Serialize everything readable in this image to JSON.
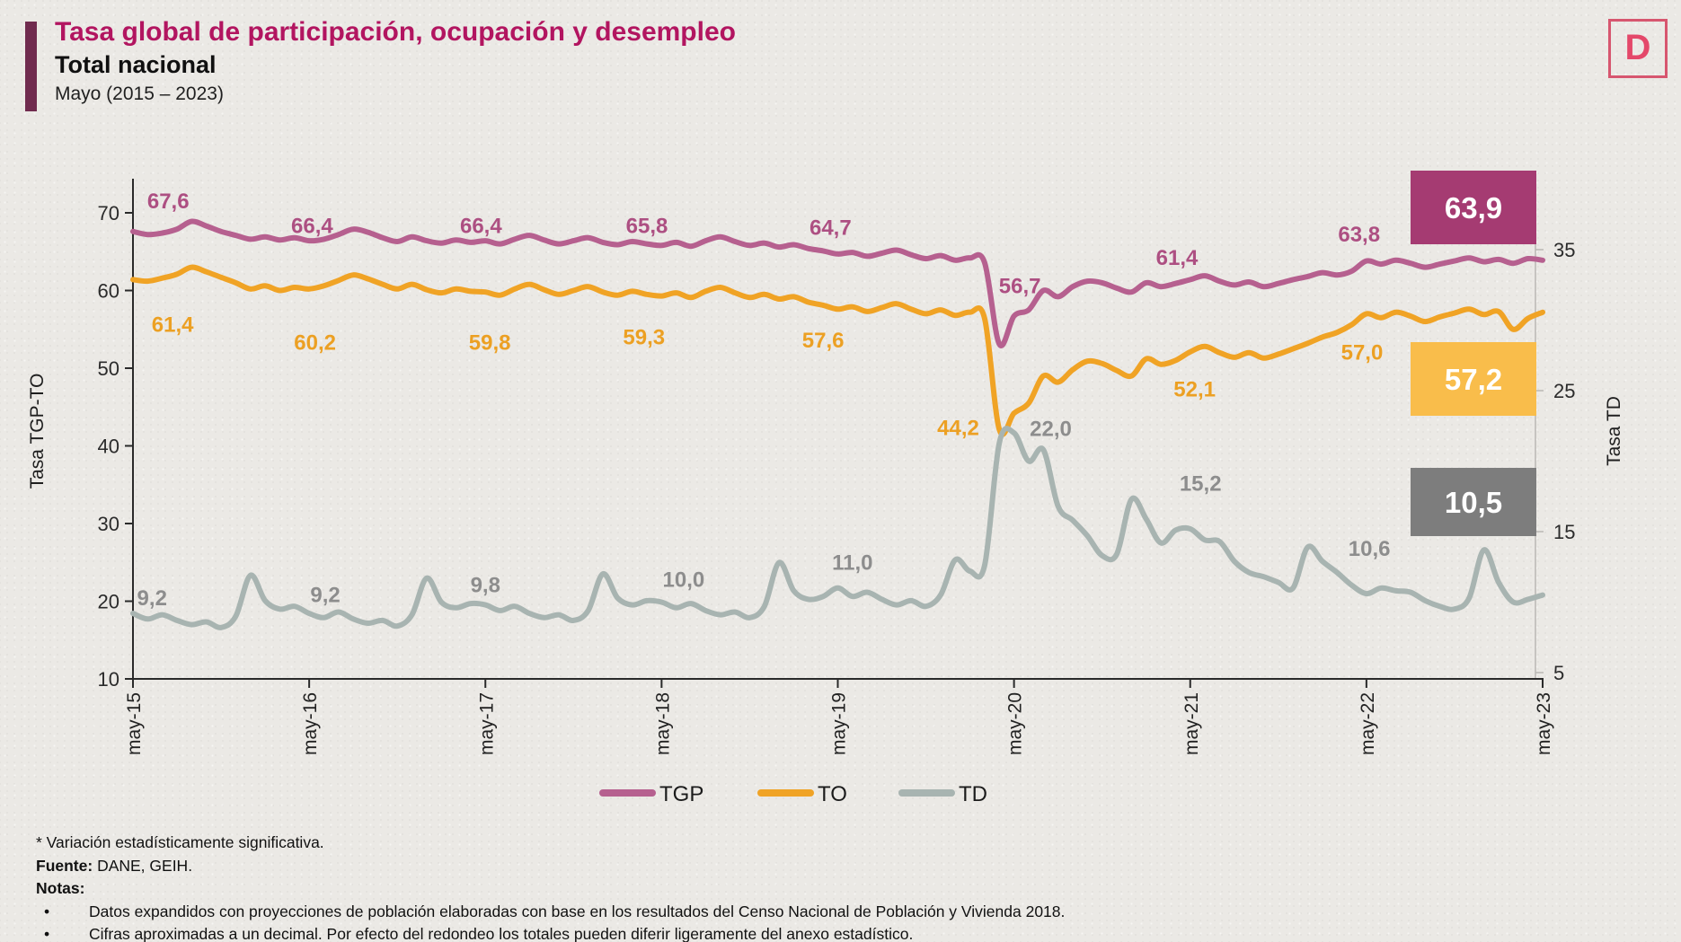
{
  "header": {
    "title": "Tasa global de participación, ocupación y desempleo",
    "subtitle": "Total nacional",
    "period": "Mayo (2015 – 2023)",
    "logo_letter": "D"
  },
  "chart_data": {
    "type": "line",
    "title": "Tasa global de participación, ocupación y desempleo - Total nacional",
    "x_unit": "month",
    "x_tick_labels": [
      "may-15",
      "may-16",
      "may-17",
      "may-18",
      "may-19",
      "may-20",
      "may-21",
      "may-22",
      "may-23"
    ],
    "axes": {
      "left": {
        "label": "Tasa TGP-TO",
        "ticks": [
          70,
          60,
          50,
          40,
          30,
          20,
          10
        ]
      },
      "right": {
        "label": "Tasa TD",
        "ticks": [
          35,
          25,
          15,
          5
        ]
      }
    },
    "annual_may_values": {
      "categories": [
        "may-15",
        "may-16",
        "may-17",
        "may-18",
        "may-19",
        "may-20",
        "may-21",
        "may-22",
        "may-23"
      ],
      "TGP": [
        67.6,
        66.4,
        66.4,
        65.8,
        64.7,
        56.7,
        61.4,
        63.8,
        63.9
      ],
      "TO": [
        61.4,
        60.2,
        59.8,
        59.3,
        57.6,
        44.2,
        52.1,
        57.0,
        57.2
      ],
      "TD": [
        9.2,
        9.2,
        9.8,
        10.0,
        11.0,
        22.0,
        15.2,
        10.6,
        10.5
      ]
    },
    "series": [
      {
        "name": "TGP",
        "axis": "left",
        "color": "#b6608f",
        "label_color": "#ad4f82",
        "monthly_estimate": [
          67.6,
          67.2,
          67.4,
          67.9,
          68.9,
          68.3,
          67.6,
          67.1,
          66.6,
          66.9,
          66.5,
          66.8,
          66.4,
          66.6,
          67.2,
          67.9,
          67.5,
          66.8,
          66.3,
          66.9,
          66.4,
          66.1,
          66.5,
          66.2,
          66.4,
          66.0,
          66.6,
          67.1,
          66.5,
          66.0,
          66.4,
          66.8,
          66.2,
          65.9,
          66.3,
          66.0,
          65.8,
          66.2,
          65.7,
          66.4,
          66.9,
          66.3,
          65.8,
          66.1,
          65.6,
          65.9,
          65.4,
          65.1,
          64.7,
          64.9,
          64.4,
          64.8,
          65.2,
          64.6,
          64.1,
          64.5,
          63.9,
          64.2,
          63.6,
          53.1,
          56.7,
          57.5,
          60.0,
          59.2,
          60.5,
          61.2,
          61.0,
          60.3,
          59.8,
          61.0,
          60.5,
          60.9,
          61.4,
          61.9,
          61.2,
          60.7,
          61.1,
          60.5,
          60.9,
          61.4,
          61.8,
          62.3,
          62.0,
          62.5,
          63.8,
          63.4,
          63.9,
          63.5,
          63.0,
          63.4,
          63.8,
          64.2,
          63.7,
          64.0,
          63.5,
          64.1,
          63.9
        ],
        "annotations": [
          {
            "text": "67,6",
            "m": 2.4,
            "v": 71.5
          },
          {
            "text": "66,4",
            "m": 12.2,
            "v": 68.3
          },
          {
            "text": "66,4",
            "m": 23.7,
            "v": 68.3
          },
          {
            "text": "65,8",
            "m": 35.0,
            "v": 68.3
          },
          {
            "text": "64,7",
            "m": 47.5,
            "v": 68.1
          },
          {
            "text": "56,7",
            "m": 60.4,
            "v": 60.6
          },
          {
            "text": "61,4",
            "m": 71.1,
            "v": 64.2
          },
          {
            "text": "63,8",
            "m": 83.5,
            "v": 67.2
          }
        ],
        "end_box": {
          "text": "63,9",
          "bg": "#a53b72"
        }
      },
      {
        "name": "TO",
        "axis": "left",
        "color": "#f0a325",
        "label_color": "#eca023",
        "monthly_estimate": [
          61.4,
          61.2,
          61.6,
          62.1,
          63.0,
          62.4,
          61.7,
          61.0,
          60.2,
          60.6,
          60.0,
          60.4,
          60.2,
          60.6,
          61.3,
          62.0,
          61.5,
          60.8,
          60.2,
          60.8,
          60.1,
          59.7,
          60.2,
          59.9,
          59.8,
          59.4,
          60.2,
          60.8,
          60.1,
          59.5,
          60.0,
          60.5,
          59.8,
          59.4,
          59.9,
          59.5,
          59.3,
          59.7,
          59.1,
          59.9,
          60.4,
          59.7,
          59.1,
          59.5,
          58.9,
          59.2,
          58.5,
          58.1,
          57.6,
          57.9,
          57.3,
          57.8,
          58.3,
          57.6,
          57.0,
          57.5,
          56.8,
          57.2,
          56.4,
          42.1,
          44.2,
          45.5,
          49.0,
          48.2,
          49.8,
          50.9,
          50.6,
          49.7,
          49.0,
          51.2,
          50.5,
          51.0,
          52.1,
          52.8,
          52.0,
          51.4,
          52.0,
          51.3,
          51.8,
          52.5,
          53.2,
          54.0,
          54.6,
          55.6,
          57.0,
          56.5,
          57.2,
          56.7,
          56.0,
          56.6,
          57.1,
          57.6,
          56.9,
          57.3,
          55.0,
          56.4,
          57.2
        ],
        "annotations": [
          {
            "text": "61,4",
            "m": 2.7,
            "v": 55.6
          },
          {
            "text": "60,2",
            "m": 12.4,
            "v": 53.3
          },
          {
            "text": "59,8",
            "m": 24.3,
            "v": 53.3
          },
          {
            "text": "59,3",
            "m": 34.8,
            "v": 54.0
          },
          {
            "text": "57,6",
            "m": 47.0,
            "v": 53.6
          },
          {
            "text": "44,2",
            "m": 56.2,
            "v": 42.3
          },
          {
            "text": "52,1",
            "m": 72.3,
            "v": 47.3
          },
          {
            "text": "57,0",
            "m": 83.7,
            "v": 52.0
          }
        ],
        "end_box": {
          "text": "57,2",
          "bg": "#f9bd4b"
        }
      },
      {
        "name": "TD",
        "axis": "right",
        "color": "#a8b4b1",
        "label_color": "#8d8d8d",
        "monthly_estimate": [
          9.2,
          8.8,
          9.1,
          8.7,
          8.4,
          8.6,
          8.2,
          9.0,
          11.9,
          10.1,
          9.5,
          9.7,
          9.2,
          8.9,
          9.3,
          8.8,
          8.5,
          8.7,
          8.3,
          9.1,
          11.7,
          10.0,
          9.6,
          9.9,
          9.8,
          9.4,
          9.7,
          9.2,
          8.9,
          9.1,
          8.7,
          9.4,
          12.0,
          10.3,
          9.8,
          10.1,
          10.0,
          9.6,
          9.9,
          9.4,
          9.1,
          9.3,
          8.9,
          9.7,
          12.8,
          10.8,
          10.2,
          10.4,
          11.0,
          10.4,
          10.7,
          10.2,
          9.8,
          10.1,
          9.7,
          10.5,
          13.0,
          12.2,
          12.6,
          21.3,
          22.0,
          20.0,
          20.8,
          16.8,
          15.8,
          14.7,
          13.3,
          13.4,
          17.3,
          15.9,
          14.2,
          15.1,
          15.2,
          14.4,
          14.3,
          12.9,
          12.1,
          11.8,
          11.4,
          11.0,
          13.9,
          12.9,
          12.1,
          11.2,
          10.6,
          11.0,
          10.8,
          10.7,
          10.1,
          9.7,
          9.5,
          10.3,
          13.7,
          11.4,
          10.0,
          10.2,
          10.5
        ],
        "annotations": [
          {
            "text": "9,2",
            "m": 1.3,
            "v": 10.3
          },
          {
            "text": "9,2",
            "m": 13.1,
            "v": 10.5
          },
          {
            "text": "9,8",
            "m": 24.0,
            "v": 11.2
          },
          {
            "text": "10,0",
            "m": 37.5,
            "v": 11.6
          },
          {
            "text": "11,0",
            "m": 49.0,
            "v": 12.8
          },
          {
            "text": "22,0",
            "m": 62.5,
            "v": 22.3
          },
          {
            "text": "15,2",
            "m": 72.7,
            "v": 18.4
          },
          {
            "text": "10,6",
            "m": 84.2,
            "v": 13.8
          }
        ],
        "end_box": {
          "text": "10,5",
          "bg": "#7d7d7d"
        }
      }
    ],
    "legend_position": "bottom"
  },
  "footer": {
    "star_note": "* Variación estadísticamente significativa.",
    "fuente_label": "Fuente:",
    "fuente_text": " DANE, GEIH.",
    "notas_label": "Notas:",
    "bullet_char": "•",
    "bullets": [
      "Datos expandidos con proyecciones de población elaboradas con base en los resultados del Censo Nacional de Población y Vivienda 2018.",
      "Cifras aproximadas a un decimal. Por efecto del redondeo los totales pueden diferir ligeramente del anexo estadístico."
    ]
  }
}
